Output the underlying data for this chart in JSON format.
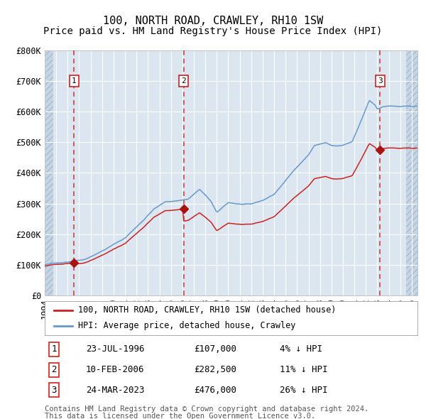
{
  "title": "100, NORTH ROAD, CRAWLEY, RH10 1SW",
  "subtitle": "Price paid vs. HM Land Registry's House Price Index (HPI)",
  "ylim": [
    0,
    800000
  ],
  "yticks": [
    0,
    100000,
    200000,
    300000,
    400000,
    500000,
    600000,
    700000,
    800000
  ],
  "ytick_labels": [
    "£0",
    "£100K",
    "£200K",
    "£300K",
    "£400K",
    "£500K",
    "£600K",
    "£700K",
    "£800K"
  ],
  "xlim_start": 1994.0,
  "xlim_end": 2026.5,
  "hpi_color": "#6699cc",
  "price_color": "#cc2222",
  "sale_marker_color": "#aa1111",
  "dashed_line_color": "#cc2222",
  "background_color": "#ffffff",
  "plot_bg_color": "#dce6f1",
  "grid_color": "#ffffff",
  "sales": [
    {
      "date_num": 1996.55,
      "price": 107000,
      "label": "1",
      "date_str": "23-JUL-1996",
      "pct": "4% ↓ HPI"
    },
    {
      "date_num": 2006.11,
      "price": 282500,
      "label": "2",
      "date_str": "10-FEB-2006",
      "pct": "11% ↓ HPI"
    },
    {
      "date_num": 2023.23,
      "price": 476000,
      "label": "3",
      "date_str": "24-MAR-2023",
      "pct": "26% ↓ HPI"
    }
  ],
  "hpi_anchors": [
    [
      1994.0,
      100000
    ],
    [
      1996.0,
      110000
    ],
    [
      1997.5,
      120000
    ],
    [
      1999.0,
      148000
    ],
    [
      2001.0,
      190000
    ],
    [
      2002.5,
      245000
    ],
    [
      2003.5,
      285000
    ],
    [
      2004.5,
      308000
    ],
    [
      2005.5,
      312000
    ],
    [
      2006.5,
      318000
    ],
    [
      2007.5,
      350000
    ],
    [
      2008.5,
      310000
    ],
    [
      2009.0,
      272000
    ],
    [
      2010.0,
      305000
    ],
    [
      2011.0,
      300000
    ],
    [
      2012.0,
      298000
    ],
    [
      2013.0,
      310000
    ],
    [
      2014.0,
      330000
    ],
    [
      2015.0,
      375000
    ],
    [
      2016.0,
      420000
    ],
    [
      2017.0,
      460000
    ],
    [
      2017.5,
      490000
    ],
    [
      2018.5,
      500000
    ],
    [
      2019.0,
      490000
    ],
    [
      2019.5,
      488000
    ],
    [
      2020.0,
      490000
    ],
    [
      2020.8,
      500000
    ],
    [
      2021.5,
      560000
    ],
    [
      2022.3,
      635000
    ],
    [
      2022.8,
      620000
    ],
    [
      2023.0,
      608000
    ],
    [
      2023.5,
      615000
    ],
    [
      2024.0,
      618000
    ],
    [
      2025.0,
      615000
    ],
    [
      2026.0,
      615000
    ]
  ],
  "legend_entry1": "100, NORTH ROAD, CRAWLEY, RH10 1SW (detached house)",
  "legend_entry2": "HPI: Average price, detached house, Crawley",
  "footer1": "Contains HM Land Registry data © Crown copyright and database right 2024.",
  "footer2": "This data is licensed under the Open Government Licence v3.0.",
  "title_fontsize": 11,
  "subtitle_fontsize": 10,
  "tick_fontsize": 8.5,
  "legend_fontsize": 8.5,
  "table_fontsize": 9,
  "footer_fontsize": 7.5
}
